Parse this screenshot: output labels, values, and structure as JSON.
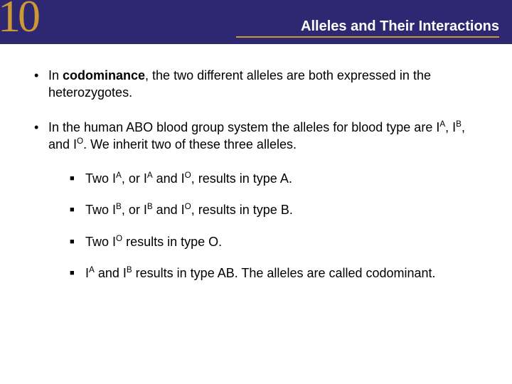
{
  "header": {
    "chapter_number": "10",
    "title": "Alleles and Their Interactions",
    "bg_color": "#2e2873",
    "accent_color": "#cc9933",
    "title_color": "#ffffff"
  },
  "content": {
    "font_family": "Arial",
    "font_size_pt": 14,
    "text_color": "#000000",
    "bullets": [
      {
        "prefix": "In ",
        "bold_term": "codominance",
        "suffix": ", the two different alleles are both expressed in the heterozygotes."
      },
      {
        "text_parts": [
          "In the human ABO blood group system the alleles for blood type are I",
          {
            "sup": "A"
          },
          ", I",
          {
            "sup": "B"
          },
          ", and I",
          {
            "sup": "O"
          },
          ".  We inherit two of these three alleles."
        ],
        "subbullets": [
          {
            "parts": [
              "Two I",
              {
                "sup": "A"
              },
              ", or I",
              {
                "sup": "A"
              },
              " and I",
              {
                "sup": "O"
              },
              ", results in type A."
            ]
          },
          {
            "parts": [
              "Two I",
              {
                "sup": "B"
              },
              ", or I",
              {
                "sup": "B"
              },
              " and I",
              {
                "sup": "O"
              },
              ", results in type B."
            ]
          },
          {
            "parts": [
              "Two I",
              {
                "sup": "O"
              },
              " results in type O."
            ]
          },
          {
            "parts": [
              "I",
              {
                "sup": "A"
              },
              "  and I",
              {
                "sup": "B"
              },
              " results in type AB. The alleles are called codominant."
            ]
          }
        ]
      }
    ]
  },
  "markers": {
    "bullet": "•",
    "subbullet": "■"
  }
}
